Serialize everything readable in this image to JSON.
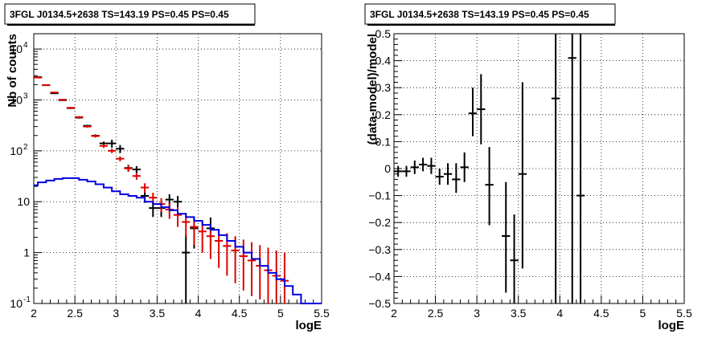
{
  "chart_data": [
    {
      "type": "scatter",
      "title": "3FGL J0134.5+2638 TS=143.19 PS=0.45 PS=0.45",
      "xlabel": "logE",
      "ylabel": "Nb of counts",
      "xlim": [
        2,
        5.5
      ],
      "ylim": [
        0.1,
        20000
      ],
      "y_scale": "log",
      "grid": true,
      "x_ticks": [
        "2",
        "2.5",
        "3",
        "3.5",
        "4",
        "4.5",
        "5",
        "5.5"
      ],
      "y_ticks": [
        {
          "value": 0.1,
          "label": "10",
          "exp": "-1"
        },
        {
          "value": 1,
          "label": "1",
          "exp": ""
        },
        {
          "value": 10,
          "label": "10",
          "exp": ""
        },
        {
          "value": 100,
          "label": "10",
          "exp": "2"
        },
        {
          "value": 1000,
          "label": "10",
          "exp": "3"
        },
        {
          "value": 10000,
          "label": "10",
          "exp": "4"
        }
      ],
      "colors": {
        "data": "#000000",
        "model": "#dd0000",
        "component": "#0000dd"
      },
      "series": [
        {
          "style": "errorbar",
          "color": "#000000",
          "points": [
            {
              "x": 2.05,
              "y": 2800,
              "lo": 2750,
              "hi": 2850
            },
            {
              "x": 2.15,
              "y": 1950,
              "lo": 1910,
              "hi": 1990
            },
            {
              "x": 2.25,
              "y": 1350,
              "lo": 1320,
              "hi": 1380
            },
            {
              "x": 2.35,
              "y": 990,
              "lo": 960,
              "hi": 1020
            },
            {
              "x": 2.45,
              "y": 690,
              "lo": 665,
              "hi": 715
            },
            {
              "x": 2.55,
              "y": 450,
              "lo": 430,
              "hi": 470
            },
            {
              "x": 2.65,
              "y": 310,
              "lo": 295,
              "hi": 325
            },
            {
              "x": 2.75,
              "y": 198,
              "lo": 185,
              "hi": 211
            },
            {
              "x": 2.85,
              "y": 140,
              "lo": 128,
              "hi": 152
            },
            {
              "x": 2.95,
              "y": 140,
              "lo": 115,
              "hi": 165
            },
            {
              "x": 3.05,
              "y": 110,
              "lo": 90,
              "hi": 130
            },
            {
              "x": 3.15,
              "y": 46,
              "lo": 39,
              "hi": 53
            },
            {
              "x": 3.25,
              "y": 43,
              "lo": 36,
              "hi": 50
            },
            {
              "x": 3.35,
              "y": 13,
              "lo": 9.5,
              "hi": 17
            },
            {
              "x": 3.45,
              "y": 7.5,
              "lo": 5,
              "hi": 10
            },
            {
              "x": 3.55,
              "y": 7.5,
              "lo": 5,
              "hi": 10
            },
            {
              "x": 3.65,
              "y": 11,
              "lo": 8,
              "hi": 14
            },
            {
              "x": 3.75,
              "y": 10,
              "lo": 7,
              "hi": 13
            },
            {
              "x": 3.85,
              "y": 1,
              "lo": 0.1,
              "hi": 2.3
            },
            {
              "x": 3.95,
              "y": 3,
              "lo": 1.2,
              "hi": 4.9
            },
            {
              "x": 4.15,
              "y": 3,
              "lo": 1.2,
              "hi": 4.9
            }
          ]
        },
        {
          "style": "errorbar",
          "color": "#dd0000",
          "points": [
            {
              "x": 2.05,
              "y": 2750,
              "lo": 2700,
              "hi": 2800
            },
            {
              "x": 2.15,
              "y": 1950,
              "lo": 1910,
              "hi": 1990
            },
            {
              "x": 2.25,
              "y": 1400,
              "lo": 1370,
              "hi": 1430
            },
            {
              "x": 2.35,
              "y": 1010,
              "lo": 980,
              "hi": 1040
            },
            {
              "x": 2.45,
              "y": 700,
              "lo": 675,
              "hi": 725
            },
            {
              "x": 2.55,
              "y": 460,
              "lo": 440,
              "hi": 480
            },
            {
              "x": 2.65,
              "y": 300,
              "lo": 285,
              "hi": 315
            },
            {
              "x": 2.75,
              "y": 195,
              "lo": 182,
              "hi": 208
            },
            {
              "x": 2.85,
              "y": 125,
              "lo": 114,
              "hi": 136
            },
            {
              "x": 2.95,
              "y": 100,
              "lo": 90,
              "hi": 110
            },
            {
              "x": 3.05,
              "y": 70,
              "lo": 62,
              "hi": 78
            },
            {
              "x": 3.15,
              "y": 45,
              "lo": 39,
              "hi": 51
            },
            {
              "x": 3.25,
              "y": 32,
              "lo": 27,
              "hi": 37
            },
            {
              "x": 3.35,
              "y": 19,
              "lo": 15,
              "hi": 23
            },
            {
              "x": 3.45,
              "y": 12,
              "lo": 9,
              "hi": 15
            },
            {
              "x": 3.55,
              "y": 9,
              "lo": 6.3,
              "hi": 11.7
            },
            {
              "x": 3.65,
              "y": 7,
              "lo": 4.6,
              "hi": 9.4
            },
            {
              "x": 3.75,
              "y": 5.5,
              "lo": 3.2,
              "hi": 7.8
            },
            {
              "x": 3.85,
              "y": 4,
              "lo": 2,
              "hi": 6
            },
            {
              "x": 3.95,
              "y": 3.2,
              "lo": 1.4,
              "hi": 5.0
            },
            {
              "x": 4.05,
              "y": 2.6,
              "lo": 1.0,
              "hi": 4.2
            },
            {
              "x": 4.15,
              "y": 2.1,
              "lo": 0.75,
              "hi": 3.5
            },
            {
              "x": 4.25,
              "y": 1.7,
              "lo": 0.5,
              "hi": 2.9
            },
            {
              "x": 4.35,
              "y": 1.35,
              "lo": 0.35,
              "hi": 2.4
            },
            {
              "x": 4.45,
              "y": 1.1,
              "lo": 0.25,
              "hi": 2.1
            },
            {
              "x": 4.55,
              "y": 0.85,
              "lo": 0.18,
              "hi": 1.8
            },
            {
              "x": 4.65,
              "y": 0.7,
              "lo": 0.14,
              "hi": 1.6
            },
            {
              "x": 4.75,
              "y": 0.55,
              "lo": 0.12,
              "hi": 1.4
            },
            {
              "x": 4.85,
              "y": 0.45,
              "lo": 0.1,
              "hi": 1.25
            },
            {
              "x": 4.95,
              "y": 0.35,
              "lo": 0.1,
              "hi": 1.1
            },
            {
              "x": 5.05,
              "y": 0.28,
              "lo": 0.1,
              "hi": 1.0
            }
          ]
        },
        {
          "style": "step",
          "color": "#0000dd",
          "x": [
            2.0,
            2.05,
            2.15,
            2.25,
            2.35,
            2.45,
            2.55,
            2.65,
            2.75,
            2.85,
            2.95,
            3.05,
            3.15,
            3.25,
            3.35,
            3.45,
            3.55,
            3.65,
            3.75,
            3.85,
            3.95,
            4.05,
            4.15,
            4.25,
            4.35,
            4.45,
            4.55,
            4.65,
            4.75,
            4.85,
            4.95,
            5.05,
            5.15,
            5.25,
            5.35,
            5.45
          ],
          "values": [
            21,
            24,
            26,
            28,
            29,
            29,
            27,
            25,
            22,
            19,
            16,
            14,
            13,
            12,
            10,
            9,
            7.8,
            6.8,
            5.8,
            5.0,
            4.2,
            3.5,
            2.8,
            2.2,
            1.7,
            1.3,
            1.0,
            0.75,
            0.55,
            0.4,
            0.3,
            0.22,
            0.15,
            0.1,
            0.1,
            0.1
          ]
        }
      ]
    },
    {
      "type": "scatter",
      "title": "3FGL J0134.5+2638 TS=143.19 PS=0.45 PS=0.45",
      "xlabel": "logE",
      "ylabel": "(data-model)/model",
      "xlim": [
        2,
        5.5
      ],
      "ylim": [
        -0.5,
        0.5
      ],
      "grid": true,
      "x_ticks": [
        "2",
        "2.5",
        "3",
        "3.5",
        "4",
        "4.5",
        "5",
        "5.5"
      ],
      "y_ticks": [
        {
          "value": -0.5,
          "label": "−0.5"
        },
        {
          "value": -0.4,
          "label": "−0.4"
        },
        {
          "value": -0.3,
          "label": "−0.3"
        },
        {
          "value": -0.2,
          "label": "−0.2"
        },
        {
          "value": -0.1,
          "label": "−0.1"
        },
        {
          "value": 0,
          "label": "0"
        },
        {
          "value": 0.1,
          "label": "0.1"
        },
        {
          "value": 0.2,
          "label": "0.2"
        },
        {
          "value": 0.3,
          "label": "0.3"
        },
        {
          "value": 0.4,
          "label": "0.4"
        },
        {
          "value": 0.5,
          "label": "0.5"
        }
      ],
      "series": [
        {
          "style": "errorbar",
          "color": "#000000",
          "points": [
            {
              "x": 2.05,
              "y": -0.01,
              "lo": -0.03,
              "hi": 0.01
            },
            {
              "x": 2.15,
              "y": -0.01,
              "lo": -0.03,
              "hi": 0.01
            },
            {
              "x": 2.25,
              "y": 0.005,
              "lo": -0.02,
              "hi": 0.03
            },
            {
              "x": 2.35,
              "y": 0.015,
              "lo": -0.01,
              "hi": 0.04
            },
            {
              "x": 2.45,
              "y": 0.01,
              "lo": -0.02,
              "hi": 0.04
            },
            {
              "x": 2.55,
              "y": -0.03,
              "lo": -0.06,
              "hi": 0.0
            },
            {
              "x": 2.65,
              "y": -0.02,
              "lo": -0.06,
              "hi": 0.02
            },
            {
              "x": 2.75,
              "y": -0.04,
              "lo": -0.09,
              "hi": 0.02
            },
            {
              "x": 2.85,
              "y": 0.005,
              "lo": -0.05,
              "hi": 0.06
            },
            {
              "x": 2.95,
              "y": 0.205,
              "lo": 0.12,
              "hi": 0.3
            },
            {
              "x": 3.05,
              "y": 0.22,
              "lo": 0.09,
              "hi": 0.35
            },
            {
              "x": 3.15,
              "y": -0.06,
              "lo": -0.21,
              "hi": 0.08
            },
            {
              "x": 3.35,
              "y": -0.25,
              "lo": -0.46,
              "hi": -0.05
            },
            {
              "x": 3.45,
              "y": -0.34,
              "lo": -0.5,
              "hi": -0.17
            },
            {
              "x": 3.55,
              "y": -0.02,
              "lo": -0.37,
              "hi": 0.32
            },
            {
              "x": 3.95,
              "y": 0.26,
              "lo": -0.5,
              "hi": 0.5
            },
            {
              "x": 4.15,
              "y": 0.41,
              "lo": -0.5,
              "hi": 0.5
            },
            {
              "x": 4.25,
              "y": -0.1,
              "lo": -0.5,
              "hi": 0.5
            }
          ]
        }
      ]
    }
  ]
}
